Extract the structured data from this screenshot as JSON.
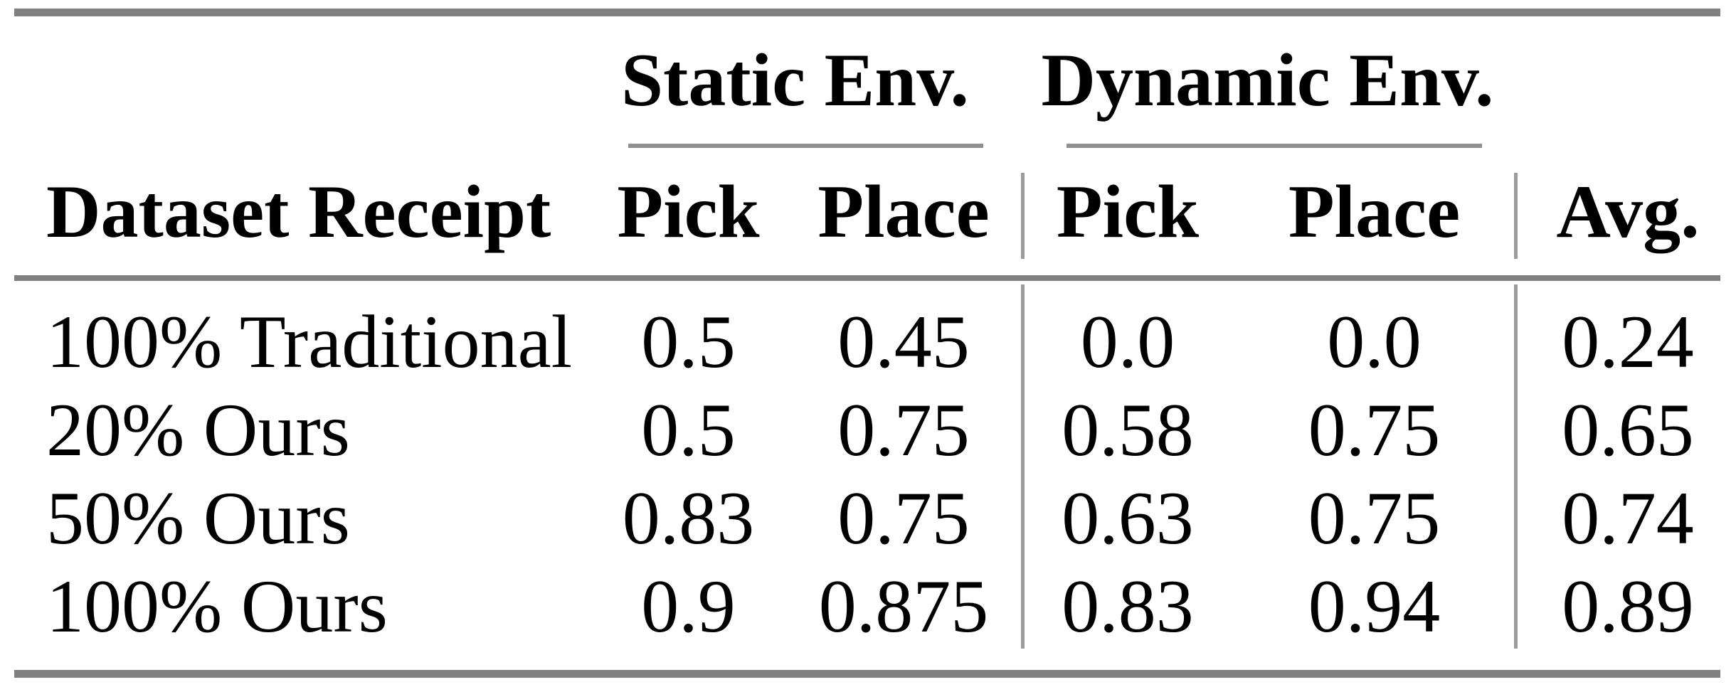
{
  "colors": {
    "thick_rule_gray": "#808080",
    "cmidrule_gray": "#8f8f8f",
    "divider_gray": "#9a9a9a",
    "text": "#000000"
  },
  "table": {
    "group_headers": {
      "static": "Static Env.",
      "dynamic": "Dynamic Env."
    },
    "column_headers": {
      "dataset": "Dataset Receipt",
      "static_pick": "Pick",
      "static_place": "Place",
      "dynamic_pick": "Pick",
      "dynamic_place": "Place",
      "avg": "Avg."
    },
    "rows": [
      {
        "label": "100% Traditional",
        "values": [
          "0.5",
          "0.45",
          "0.0",
          "0.0",
          "0.24"
        ]
      },
      {
        "label": "20% Ours",
        "values": [
          "0.5",
          "0.75",
          "0.58",
          "0.75",
          "0.65"
        ]
      },
      {
        "label": "50% Ours",
        "values": [
          "0.83",
          "0.75",
          "0.63",
          "0.75",
          "0.74"
        ]
      },
      {
        "label": "100% Ours",
        "values": [
          "0.9",
          "0.875",
          "0.83",
          "0.94",
          "0.89"
        ]
      }
    ]
  }
}
